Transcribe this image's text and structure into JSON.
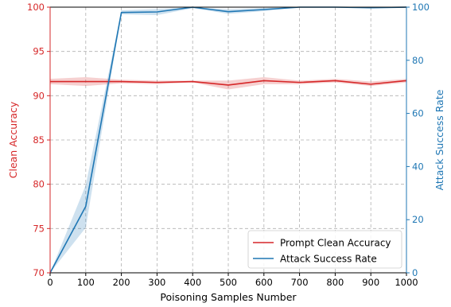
{
  "chart_data": {
    "type": "line",
    "xlabel": "Poisoning Samples Number",
    "ylabel_left": "Clean Accuracy",
    "ylabel_right": "Attack Success Rate",
    "xlim": [
      0,
      1000
    ],
    "ylim_left": [
      70,
      100
    ],
    "ylim_right": [
      0,
      100
    ],
    "x_ticks": [
      0,
      100,
      200,
      300,
      400,
      500,
      600,
      700,
      800,
      900,
      1000
    ],
    "y_left_ticks": [
      70,
      75,
      80,
      85,
      90,
      95,
      100
    ],
    "y_right_ticks": [
      0,
      20,
      40,
      60,
      80,
      100
    ],
    "grid": true,
    "legend_position": "lower-right",
    "x": [
      0,
      100,
      200,
      300,
      400,
      500,
      600,
      700,
      800,
      900,
      1000
    ],
    "series": [
      {
        "name": "Prompt Clean Accuracy",
        "axis": "left",
        "color": "#d62728",
        "values": [
          91.6,
          91.6,
          91.6,
          91.5,
          91.6,
          91.2,
          91.7,
          91.5,
          91.7,
          91.3,
          91.7
        ],
        "band_lower": [
          91.3,
          91.1,
          91.4,
          91.3,
          91.5,
          90.7,
          91.3,
          91.3,
          91.5,
          91.1,
          91.5
        ],
        "band_upper": [
          91.9,
          92.1,
          91.8,
          91.7,
          91.7,
          91.7,
          92.1,
          91.7,
          91.9,
          91.6,
          91.9
        ]
      },
      {
        "name": "Attack Success Rate",
        "axis": "right",
        "color": "#1f77b4",
        "values": [
          0,
          25,
          98,
          98.2,
          100,
          98.3,
          99.1,
          100,
          100,
          99.8,
          100
        ],
        "band_lower": [
          0,
          17,
          97.3,
          97,
          99.6,
          97.5,
          98.5,
          100,
          100,
          99.6,
          99.9
        ],
        "band_upper": [
          0,
          33,
          98.8,
          99.3,
          100,
          99.2,
          99.7,
          100,
          100,
          100,
          100
        ]
      }
    ]
  }
}
